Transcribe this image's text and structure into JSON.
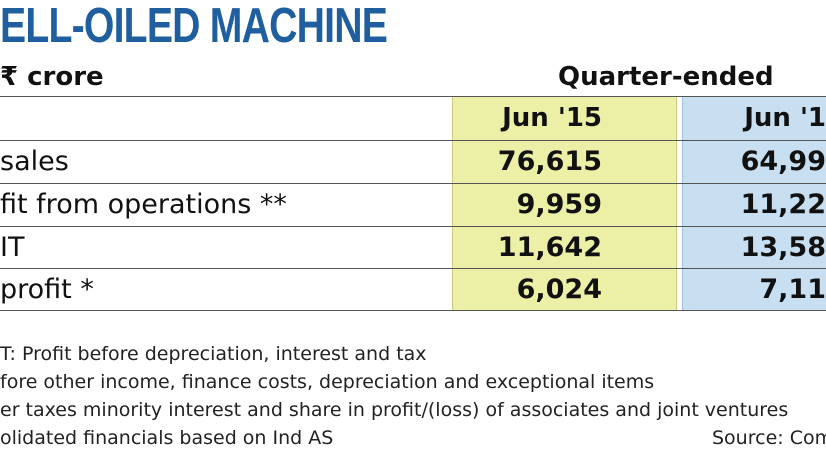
{
  "title": "ELL-OILED MACHINE",
  "unit_label": "₹ crore",
  "group_header": "Quarter-ended",
  "columns": [
    "Jun '15",
    "Jun '1"
  ],
  "rows": [
    {
      "label": "sales",
      "a": "76,615",
      "b": "64,99"
    },
    {
      "label": "fit from operations **",
      "a": "9,959",
      "b": "11,22"
    },
    {
      "label": "IT",
      "a": "11,642",
      "b": "13,58"
    },
    {
      "label": "profit *",
      "a": "6,024",
      "b": "7,11"
    }
  ],
  "footnotes": [
    "T: Profit before depreciation, interest and tax",
    "fore other income, finance costs, depreciation and exceptional items",
    "er taxes minority interest and share in profit/(loss) of associates and joint ventures",
    "olidated financials based on Ind AS"
  ],
  "source": "Source: Com",
  "colors": {
    "title": "#1f5fa0",
    "col_a_fill": "#ecefa6",
    "col_b_fill": "#c7dff1"
  }
}
